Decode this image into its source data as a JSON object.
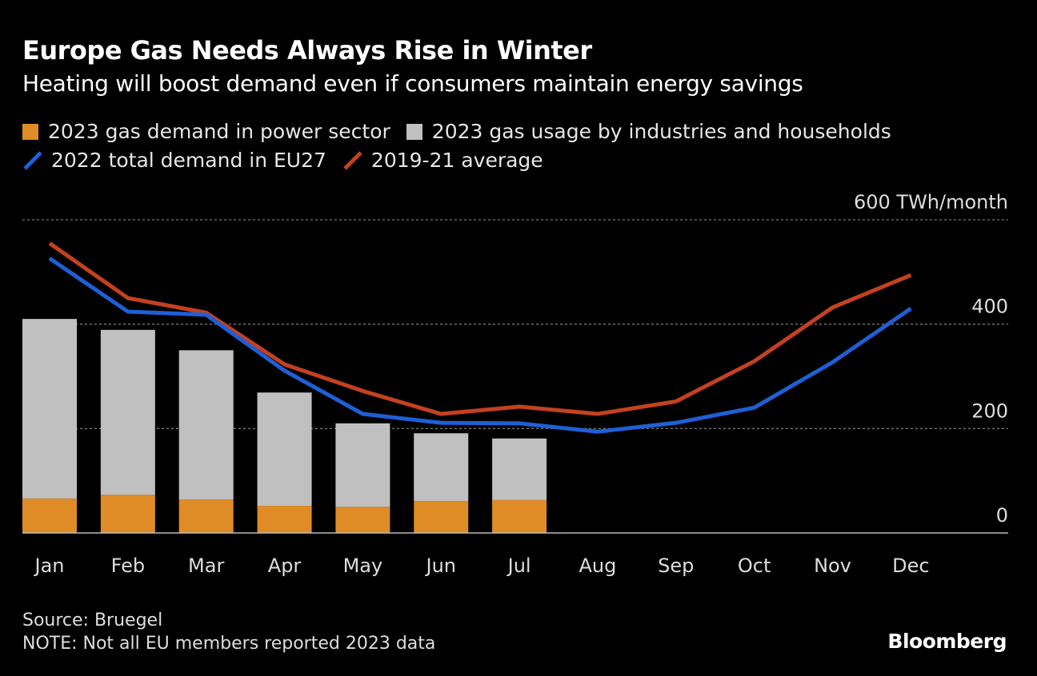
{
  "chart_data": {
    "type": "bar+line",
    "title": "Europe Gas Needs Always Rise in Winter",
    "subtitle": "Heating will boost demand even if consumers maintain energy savings",
    "unit_label": "TWh/month",
    "categories": [
      "Jan",
      "Feb",
      "Mar",
      "Apr",
      "May",
      "Jun",
      "Jul",
      "Aug",
      "Sep",
      "Oct",
      "Nov",
      "Dec"
    ],
    "ylim": [
      0,
      600
    ],
    "yticks": [
      0,
      200,
      400,
      600
    ],
    "ytick_labels": [
      "0",
      "200",
      "400",
      "600"
    ],
    "grid": true,
    "legend_placement": "top-left",
    "bars_stacked": [
      {
        "name": "2023 gas demand in power sector",
        "color": "#df8c26",
        "values": [
          66,
          73,
          64,
          52,
          50,
          61,
          63,
          null,
          null,
          null,
          null,
          null
        ]
      },
      {
        "name": "2023 gas usage by industries and households",
        "color": "#c0c0c0",
        "values": [
          344,
          316,
          286,
          217,
          160,
          130,
          118,
          null,
          null,
          null,
          null,
          null
        ]
      }
    ],
    "lines": [
      {
        "name": "2022 total demand in EU27",
        "color": "#1f5fd6",
        "values": [
          526,
          424,
          418,
          311,
          228,
          211,
          210,
          194,
          211,
          240,
          327,
          430
        ]
      },
      {
        "name": "2019-21 average",
        "color": "#c4411f",
        "values": [
          555,
          450,
          422,
          323,
          272,
          228,
          242,
          228,
          252,
          329,
          432,
          494
        ]
      }
    ]
  },
  "footer": {
    "source": "Source: Bruegel",
    "note": "NOTE: Not all EU members reported 2023 data",
    "logo": "Bloomberg"
  }
}
